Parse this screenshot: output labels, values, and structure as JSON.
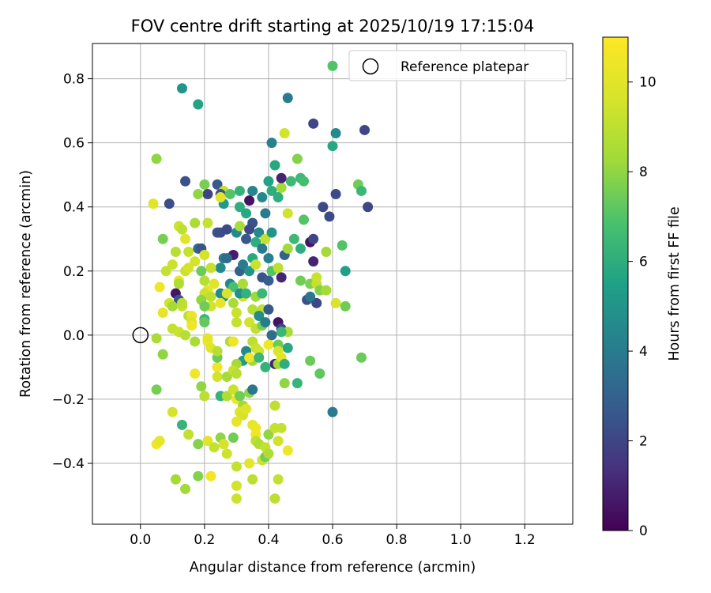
{
  "chart_data": {
    "type": "scatter",
    "title": "FOV centre drift starting at 2025/10/19 17:15:04",
    "xlabel": "Angular distance from reference (arcmin)",
    "ylabel": "Rotation from reference (arcmin)",
    "xlim": [
      -0.15,
      1.35
    ],
    "ylim": [
      -0.59,
      0.91
    ],
    "xticks": [
      0.0,
      0.2,
      0.4,
      0.6,
      0.8,
      1.0,
      1.2
    ],
    "xtick_labels": [
      "0.0",
      "0.2",
      "0.4",
      "0.6",
      "0.8",
      "1.0",
      "1.2"
    ],
    "yticks": [
      -0.4,
      -0.2,
      0.0,
      0.2,
      0.4,
      0.6,
      0.8
    ],
    "ytick_labels": [
      "−0.4",
      "−0.2",
      "0.0",
      "0.2",
      "0.4",
      "0.6",
      "0.8"
    ],
    "grid": true,
    "legend": {
      "position": "top-right",
      "entries": [
        "Reference platepar"
      ]
    },
    "reference_point": {
      "label": "Reference platepar",
      "x": 0.0,
      "y": 0.0
    },
    "colorbar": {
      "label": "Hours from first FF file",
      "colormap": "viridis",
      "range": [
        0,
        11
      ],
      "ticks": [
        0,
        2,
        4,
        6,
        8,
        10
      ],
      "tick_labels": [
        "0",
        "2",
        "4",
        "6",
        "8",
        "10"
      ]
    },
    "points": [
      [
        0.6,
        0.84,
        7
      ],
      [
        0.13,
        0.77,
        5
      ],
      [
        0.18,
        0.72,
        5.6
      ],
      [
        0.46,
        0.74,
        4
      ],
      [
        0.54,
        0.66,
        2
      ],
      [
        0.61,
        0.63,
        4.6
      ],
      [
        0.7,
        0.64,
        2
      ],
      [
        0.45,
        0.63,
        9.5
      ],
      [
        0.41,
        0.6,
        4.2
      ],
      [
        0.6,
        0.59,
        5.8
      ],
      [
        0.05,
        0.55,
        8
      ],
      [
        0.49,
        0.55,
        7.8
      ],
      [
        0.42,
        0.53,
        5.8
      ],
      [
        0.68,
        0.47,
        7.5
      ],
      [
        0.69,
        0.45,
        6.4
      ],
      [
        0.71,
        0.4,
        2
      ],
      [
        0.61,
        0.44,
        2.2
      ],
      [
        0.57,
        0.4,
        2.2
      ],
      [
        0.59,
        0.37,
        2.2
      ],
      [
        0.14,
        0.48,
        2.4
      ],
      [
        0.2,
        0.47,
        7.6
      ],
      [
        0.24,
        0.47,
        2.7
      ],
      [
        0.26,
        0.45,
        9.2
      ],
      [
        0.25,
        0.44,
        2.5
      ],
      [
        0.21,
        0.44,
        1.9
      ],
      [
        0.18,
        0.44,
        8
      ],
      [
        0.04,
        0.41,
        10
      ],
      [
        0.09,
        0.41,
        2.3
      ],
      [
        0.26,
        0.41,
        5.2
      ],
      [
        0.25,
        0.43,
        10
      ],
      [
        0.28,
        0.44,
        7
      ],
      [
        0.31,
        0.45,
        6.2
      ],
      [
        0.35,
        0.45,
        4.4
      ],
      [
        0.34,
        0.42,
        0.5
      ],
      [
        0.38,
        0.43,
        4.5
      ],
      [
        0.41,
        0.45,
        6
      ],
      [
        0.44,
        0.46,
        8.3
      ],
      [
        0.43,
        0.43,
        6
      ],
      [
        0.47,
        0.48,
        6.5
      ],
      [
        0.5,
        0.49,
        6.5
      ],
      [
        0.51,
        0.48,
        6.7
      ],
      [
        0.44,
        0.49,
        1
      ],
      [
        0.4,
        0.48,
        5.6
      ],
      [
        0.46,
        0.38,
        9.5
      ],
      [
        0.51,
        0.36,
        7
      ],
      [
        0.31,
        0.4,
        6
      ],
      [
        0.33,
        0.38,
        5.8
      ],
      [
        0.39,
        0.38,
        4
      ],
      [
        0.12,
        0.34,
        9.3
      ],
      [
        0.13,
        0.33,
        9
      ],
      [
        0.17,
        0.35,
        8.5
      ],
      [
        0.21,
        0.35,
        9.2
      ],
      [
        0.24,
        0.32,
        2.5
      ],
      [
        0.25,
        0.32,
        2.3
      ],
      [
        0.27,
        0.33,
        2.2
      ],
      [
        0.3,
        0.32,
        4.6
      ],
      [
        0.31,
        0.34,
        8.5
      ],
      [
        0.35,
        0.35,
        2.5
      ],
      [
        0.34,
        0.33,
        2.2
      ],
      [
        0.37,
        0.32,
        4.5
      ],
      [
        0.39,
        0.3,
        9.2
      ],
      [
        0.41,
        0.32,
        5
      ],
      [
        0.07,
        0.3,
        7.6
      ],
      [
        0.14,
        0.3,
        10
      ],
      [
        0.11,
        0.26,
        8.8
      ],
      [
        0.15,
        0.26,
        9.2
      ],
      [
        0.18,
        0.27,
        3.3
      ],
      [
        0.19,
        0.27,
        2.5
      ],
      [
        0.2,
        0.25,
        9.6
      ],
      [
        0.29,
        0.25,
        0.8
      ],
      [
        0.33,
        0.3,
        2.6
      ],
      [
        0.36,
        0.29,
        6
      ],
      [
        0.38,
        0.27,
        4
      ],
      [
        0.35,
        0.24,
        5.8
      ],
      [
        0.4,
        0.24,
        4.2
      ],
      [
        0.45,
        0.25,
        3
      ],
      [
        0.5,
        0.27,
        6
      ],
      [
        0.53,
        0.29,
        0.5
      ],
      [
        0.54,
        0.3,
        2
      ],
      [
        0.54,
        0.23,
        1
      ],
      [
        0.48,
        0.3,
        6.5
      ],
      [
        0.46,
        0.27,
        8.3
      ],
      [
        0.58,
        0.26,
        8.4
      ],
      [
        0.63,
        0.28,
        7
      ],
      [
        0.64,
        0.2,
        5.5
      ],
      [
        0.26,
        0.24,
        4
      ],
      [
        0.27,
        0.24,
        3.4
      ],
      [
        0.25,
        0.21,
        4.6
      ],
      [
        0.22,
        0.21,
        9.2
      ],
      [
        0.19,
        0.2,
        7.4
      ],
      [
        0.14,
        0.2,
        9.3
      ],
      [
        0.15,
        0.21,
        9.6
      ],
      [
        0.17,
        0.23,
        9.6
      ],
      [
        0.1,
        0.22,
        9.3
      ],
      [
        0.08,
        0.2,
        9.2
      ],
      [
        0.12,
        0.17,
        10.2
      ],
      [
        0.12,
        0.16,
        8.6
      ],
      [
        0.2,
        0.17,
        8.8
      ],
      [
        0.21,
        0.14,
        10.2
      ],
      [
        0.23,
        0.16,
        10
      ],
      [
        0.28,
        0.16,
        4.5
      ],
      [
        0.29,
        0.15,
        6.8
      ],
      [
        0.31,
        0.2,
        3
      ],
      [
        0.32,
        0.22,
        4
      ],
      [
        0.34,
        0.2,
        5
      ],
      [
        0.36,
        0.22,
        9.3
      ],
      [
        0.38,
        0.18,
        2.5
      ],
      [
        0.4,
        0.17,
        2.8
      ],
      [
        0.41,
        0.2,
        7
      ],
      [
        0.43,
        0.21,
        9
      ],
      [
        0.44,
        0.18,
        1
      ],
      [
        0.5,
        0.17,
        7.5
      ],
      [
        0.53,
        0.16,
        7.7
      ],
      [
        0.55,
        0.16,
        9.2
      ],
      [
        0.55,
        0.18,
        9.3
      ],
      [
        0.56,
        0.14,
        7.8
      ],
      [
        0.52,
        0.11,
        2.4
      ],
      [
        0.55,
        0.1,
        2
      ],
      [
        0.53,
        0.12,
        3.8
      ],
      [
        0.58,
        0.14,
        8.4
      ],
      [
        0.61,
        0.1,
        9.7
      ],
      [
        0.64,
        0.09,
        7.5
      ],
      [
        0.11,
        0.13,
        0.6
      ],
      [
        0.12,
        0.11,
        2.6
      ],
      [
        0.09,
        0.1,
        9.5
      ],
      [
        0.06,
        0.15,
        10.5
      ],
      [
        0.1,
        0.09,
        8.4
      ],
      [
        0.13,
        0.09,
        9.2
      ],
      [
        0.13,
        0.1,
        9
      ],
      [
        0.2,
        0.13,
        9.4
      ],
      [
        0.22,
        0.12,
        9
      ],
      [
        0.19,
        0.11,
        8
      ],
      [
        0.22,
        0.09,
        9.5
      ],
      [
        0.25,
        0.13,
        4.6
      ],
      [
        0.26,
        0.12,
        4.7
      ],
      [
        0.25,
        0.1,
        10.2
      ],
      [
        0.27,
        0.13,
        9.8
      ],
      [
        0.29,
        0.1,
        8.5
      ],
      [
        0.32,
        0.12,
        9.6
      ],
      [
        0.32,
        0.16,
        8.5
      ],
      [
        0.31,
        0.13,
        4.8
      ],
      [
        0.33,
        0.13,
        6.2
      ],
      [
        0.36,
        0.12,
        8.2
      ],
      [
        0.38,
        0.13,
        6.4
      ],
      [
        0.35,
        0.08,
        8.8
      ],
      [
        0.38,
        0.08,
        9
      ],
      [
        0.4,
        0.08,
        2.7
      ],
      [
        0.37,
        0.06,
        4.7
      ],
      [
        0.3,
        0.07,
        9.3
      ],
      [
        0.2,
        0.09,
        7.5
      ],
      [
        0.07,
        0.07,
        10.2
      ],
      [
        0.15,
        0.06,
        9
      ],
      [
        0.16,
        0.06,
        10.3
      ],
      [
        0.16,
        0.04,
        9.8
      ],
      [
        0.16,
        0.03,
        10.5
      ],
      [
        0.2,
        0.05,
        6.4
      ],
      [
        0.2,
        0.04,
        7.3
      ],
      [
        0.1,
        0.02,
        9.2
      ],
      [
        0.12,
        0.01,
        9.3
      ],
      [
        0.14,
        0,
        8.8
      ],
      [
        0.3,
        0.04,
        9.2
      ],
      [
        0.34,
        0.04,
        9.5
      ],
      [
        0.36,
        0.02,
        9.1
      ],
      [
        0.38,
        0.03,
        7.6
      ],
      [
        0.39,
        0.04,
        4
      ],
      [
        0.43,
        0.04,
        0.5
      ],
      [
        0.44,
        0.02,
        2
      ],
      [
        0.46,
        0.01,
        8.5
      ],
      [
        0.44,
        0.01,
        6.4
      ],
      [
        0.41,
        0,
        3.4
      ],
      [
        0.05,
        -0.01,
        8.5
      ],
      [
        0.17,
        -0.02,
        8.5
      ],
      [
        0.21,
        -0.02,
        10.5
      ],
      [
        0.21,
        -0.01,
        10.2
      ],
      [
        0.22,
        -0.04,
        10
      ],
      [
        0.28,
        -0.02,
        8.5
      ],
      [
        0.29,
        -0.02,
        10.5
      ],
      [
        0.33,
        -0.05,
        4.5
      ],
      [
        0.35,
        -0.02,
        9
      ],
      [
        0.36,
        -0.04,
        9.3
      ],
      [
        0.4,
        -0.03,
        10.5
      ],
      [
        0.43,
        -0.03,
        7.4
      ],
      [
        0.46,
        -0.04,
        5.8
      ],
      [
        0.43,
        -0.05,
        9.8
      ],
      [
        0.37,
        -0.05,
        9.5
      ],
      [
        0.35,
        -0.08,
        8.2
      ],
      [
        0.32,
        -0.08,
        5.2
      ],
      [
        0.3,
        -0.09,
        8.4
      ],
      [
        0.34,
        -0.07,
        10.5
      ],
      [
        0.37,
        -0.07,
        6.4
      ],
      [
        0.42,
        -0.09,
        1
      ],
      [
        0.43,
        -0.09,
        8.3
      ],
      [
        0.44,
        -0.07,
        10
      ],
      [
        0.45,
        -0.09,
        6
      ],
      [
        0.39,
        -0.1,
        6.2
      ],
      [
        0.07,
        -0.06,
        8.2
      ],
      [
        0.17,
        -0.12,
        10.5
      ],
      [
        0.24,
        -0.1,
        10.5
      ],
      [
        0.24,
        -0.13,
        9.5
      ],
      [
        0.27,
        -0.13,
        8.4
      ],
      [
        0.29,
        -0.11,
        9.2
      ],
      [
        0.3,
        -0.12,
        8.8
      ],
      [
        0.24,
        -0.07,
        7.4
      ],
      [
        0.24,
        -0.05,
        8.8
      ],
      [
        0.07,
        -0.06,
        8
      ],
      [
        0.53,
        -0.08,
        7.4
      ],
      [
        0.56,
        -0.12,
        7.2
      ],
      [
        0.49,
        -0.15,
        6.3
      ],
      [
        0.45,
        -0.15,
        8
      ],
      [
        0.69,
        -0.07,
        7.4
      ],
      [
        0.05,
        -0.17,
        7.6
      ],
      [
        0.19,
        -0.16,
        8
      ],
      [
        0.2,
        -0.19,
        9
      ],
      [
        0.25,
        -0.19,
        6.2
      ],
      [
        0.27,
        -0.19,
        8.6
      ],
      [
        0.29,
        -0.17,
        9.3
      ],
      [
        0.3,
        -0.2,
        10.5
      ],
      [
        0.31,
        -0.19,
        7.5
      ],
      [
        0.34,
        -0.18,
        8
      ],
      [
        0.35,
        -0.17,
        3.8
      ],
      [
        0.32,
        -0.22,
        8.3
      ],
      [
        0.31,
        -0.24,
        10
      ],
      [
        0.32,
        -0.25,
        9.6
      ],
      [
        0.33,
        -0.23,
        10
      ],
      [
        0.42,
        -0.22,
        9
      ],
      [
        0.6,
        -0.24,
        4
      ],
      [
        0.1,
        -0.24,
        9.6
      ],
      [
        0.13,
        -0.28,
        6.3
      ],
      [
        0.15,
        -0.31,
        9.1
      ],
      [
        0.21,
        -0.33,
        10
      ],
      [
        0.23,
        -0.35,
        9.2
      ],
      [
        0.25,
        -0.32,
        8
      ],
      [
        0.26,
        -0.34,
        9.6
      ],
      [
        0.29,
        -0.32,
        7.5
      ],
      [
        0.3,
        -0.27,
        10.2
      ],
      [
        0.35,
        -0.28,
        10.2
      ],
      [
        0.36,
        -0.29,
        10.4
      ],
      [
        0.36,
        -0.31,
        10.5
      ],
      [
        0.36,
        -0.33,
        9
      ],
      [
        0.37,
        -0.34,
        8.6
      ],
      [
        0.39,
        -0.35,
        9.2
      ],
      [
        0.4,
        -0.31,
        8
      ],
      [
        0.42,
        -0.29,
        9.2
      ],
      [
        0.44,
        -0.29,
        9.2
      ],
      [
        0.43,
        -0.33,
        9.5
      ],
      [
        0.46,
        -0.36,
        10.5
      ],
      [
        0.05,
        -0.34,
        10.5
      ],
      [
        0.06,
        -0.33,
        10.2
      ],
      [
        0.18,
        -0.34,
        7.8
      ],
      [
        0.27,
        -0.37,
        9.4
      ],
      [
        0.3,
        -0.41,
        9.2
      ],
      [
        0.34,
        -0.4,
        10.2
      ],
      [
        0.38,
        -0.39,
        9.3
      ],
      [
        0.39,
        -0.38,
        7.5
      ],
      [
        0.4,
        -0.37,
        8.6
      ],
      [
        0.11,
        -0.45,
        8.4
      ],
      [
        0.18,
        -0.44,
        7.8
      ],
      [
        0.22,
        -0.44,
        10.6
      ],
      [
        0.3,
        -0.47,
        9.5
      ],
      [
        0.35,
        -0.45,
        9
      ],
      [
        0.43,
        -0.45,
        9.2
      ],
      [
        0.14,
        -0.48,
        8.3
      ],
      [
        0.3,
        -0.51,
        9.4
      ],
      [
        0.42,
        -0.51,
        9
      ]
    ]
  }
}
